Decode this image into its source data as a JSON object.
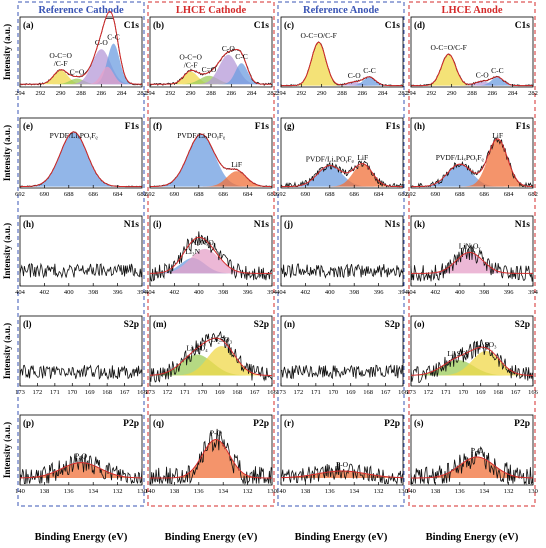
{
  "columns": [
    {
      "label": "Reference Cathode",
      "color": "#3a55b5"
    },
    {
      "label": "LHCE Cathode",
      "color": "#d42b2b"
    },
    {
      "label": "Reference Anode",
      "color": "#3a55b5"
    },
    {
      "label": "LHCE Anode",
      "color": "#d42b2b"
    }
  ],
  "y_axis_label": "Intensity (a.u.)",
  "x_axis_label": "Binding Energy (eV)",
  "colors": {
    "fit_line": "#d42b2b",
    "raw_line": "#111111",
    "blue_peak": "#6e9ee0",
    "green_peak": "#9ccc5a",
    "orange_peak": "#f0703a",
    "pink_peak": "#e6a0c8",
    "yellow_peak": "#f0d84a",
    "purple_peak": "#b59ad8"
  },
  "chart_data": [
    {
      "type": "line",
      "panel": "(a)",
      "element": "C1s",
      "x_range": [
        294,
        282
      ],
      "ticks": [
        294,
        292,
        290,
        288,
        286,
        284,
        282
      ],
      "noise": 0.003,
      "baseline": 0.04,
      "peaks": [
        {
          "label": "O-C=O\n/C-F",
          "center": 290.0,
          "height": 0.2,
          "width": 0.7,
          "color": "#f0d84a"
        },
        {
          "label": "C=O",
          "center": 288.4,
          "height": 0.08,
          "width": 0.7,
          "color": "#9ccc5a"
        },
        {
          "label": "C-O",
          "center": 286.0,
          "height": 0.5,
          "width": 0.9,
          "color": "#b59ad8"
        },
        {
          "label": "C-C",
          "center": 284.8,
          "height": 0.58,
          "width": 0.6,
          "color": "#6e9ee0"
        },
        {
          "label": "",
          "center": 285.4,
          "height": 0.25,
          "width": 0.6,
          "color": "#e6a0c8"
        }
      ]
    },
    {
      "type": "line",
      "panel": "(b)",
      "element": "C1s",
      "x_range": [
        294,
        282
      ],
      "ticks": [
        294,
        292,
        290,
        288,
        286,
        284,
        282
      ],
      "noise": 0.004,
      "baseline": 0.04,
      "peaks": [
        {
          "label": "O-C=O\n/C-F",
          "center": 290.0,
          "height": 0.18,
          "width": 0.7,
          "color": "#f0d84a"
        },
        {
          "label": "C=O",
          "center": 288.2,
          "height": 0.12,
          "width": 0.9,
          "color": "#9ccc5a"
        },
        {
          "label": "C-O",
          "center": 286.3,
          "height": 0.42,
          "width": 0.9,
          "color": "#b59ad8"
        },
        {
          "label": "C-C",
          "center": 285.0,
          "height": 0.3,
          "width": 0.6,
          "color": "#6e9ee0"
        }
      ]
    },
    {
      "type": "line",
      "panel": "(c)",
      "element": "C1s",
      "x_range": [
        294,
        282
      ],
      "ticks": [
        294,
        292,
        290,
        288,
        286,
        284,
        282
      ],
      "noise": 0.003,
      "baseline": 0.02,
      "peaks": [
        {
          "label": "O-C=O/C-F",
          "center": 290.3,
          "height": 0.62,
          "width": 0.7,
          "color": "#f0d84a"
        },
        {
          "label": "C-O",
          "center": 286.8,
          "height": 0.05,
          "width": 0.7,
          "color": "#b59ad8"
        },
        {
          "label": "C-C",
          "center": 285.3,
          "height": 0.12,
          "width": 0.6,
          "color": "#6e9ee0"
        }
      ]
    },
    {
      "type": "line",
      "panel": "(d)",
      "element": "C1s",
      "x_range": [
        294,
        282
      ],
      "ticks": [
        294,
        292,
        290,
        288,
        286,
        284,
        282
      ],
      "noise": 0.003,
      "baseline": 0.02,
      "peaks": [
        {
          "label": "O-C=O/C-F",
          "center": 290.3,
          "height": 0.45,
          "width": 0.7,
          "color": "#f0d84a"
        },
        {
          "label": "C-O",
          "center": 287.0,
          "height": 0.06,
          "width": 0.7,
          "color": "#b59ad8"
        },
        {
          "label": "C-C",
          "center": 285.5,
          "height": 0.12,
          "width": 0.6,
          "color": "#6e9ee0"
        }
      ]
    },
    {
      "type": "line",
      "panel": "(e)",
      "element": "F1s",
      "x_range": [
        692,
        682
      ],
      "ticks": [
        692,
        690,
        688,
        686,
        684,
        682
      ],
      "noise": 0.002,
      "baseline": 0.02,
      "peaks": [
        {
          "label": "PVDF/LiₓPOᵧFᵨ",
          "center": 687.6,
          "height": 0.78,
          "width": 1.1,
          "color": "#6e9ee0"
        }
      ]
    },
    {
      "type": "line",
      "panel": "(f)",
      "element": "F1s",
      "x_range": [
        692,
        682
      ],
      "ticks": [
        692,
        690,
        688,
        686,
        684,
        682
      ],
      "noise": 0.002,
      "baseline": 0.02,
      "peaks": [
        {
          "label": "PVDF/LiₓPOᵧFᵨ",
          "center": 687.8,
          "height": 0.75,
          "width": 1.1,
          "color": "#6e9ee0"
        },
        {
          "label": "LiF",
          "center": 684.9,
          "height": 0.22,
          "width": 0.8,
          "color": "#f0703a"
        }
      ]
    },
    {
      "type": "line",
      "panel": "(g)",
      "element": "F1s",
      "x_range": [
        692,
        682
      ],
      "ticks": [
        692,
        690,
        688,
        686,
        684,
        682
      ],
      "noise": 0.012,
      "baseline": 0.02,
      "peaks": [
        {
          "label": "PVDF/LiₓPOᵧFᵨ",
          "center": 688.0,
          "height": 0.3,
          "width": 1.0,
          "color": "#6e9ee0"
        },
        {
          "label": "LiF",
          "center": 685.3,
          "height": 0.32,
          "width": 0.8,
          "color": "#f0703a"
        }
      ]
    },
    {
      "type": "line",
      "panel": "(h)",
      "element": "F1s",
      "x_range": [
        692,
        682
      ],
      "ticks": [
        692,
        690,
        688,
        686,
        684,
        682
      ],
      "noise": 0.012,
      "baseline": 0.02,
      "peaks": [
        {
          "label": "PVDF/LiₓPOᵧFᵨ",
          "center": 688.0,
          "height": 0.32,
          "width": 1.0,
          "color": "#6e9ee0"
        },
        {
          "label": "LiF",
          "center": 684.9,
          "height": 0.68,
          "width": 0.8,
          "color": "#f0703a"
        }
      ]
    },
    {
      "type": "line",
      "panel": "(h)",
      "element": "N1s",
      "x_range": [
        404,
        394
      ],
      "ticks": [
        404,
        402,
        400,
        398,
        396,
        394
      ],
      "noise": 0.025,
      "baseline": 0.22,
      "peaks": []
    },
    {
      "type": "line",
      "panel": "(i)",
      "element": "N1s",
      "x_range": [
        404,
        394
      ],
      "ticks": [
        404,
        402,
        400,
        398,
        396,
        394
      ],
      "noise": 0.03,
      "baseline": 0.18,
      "peaks": [
        {
          "label": "Li₃N",
          "center": 400.5,
          "height": 0.22,
          "width": 1.0,
          "color": "#6e9ee0"
        },
        {
          "label": "LiNₓOᵧ",
          "center": 399.5,
          "height": 0.35,
          "width": 1.2,
          "color": "#e6a0c8"
        }
      ]
    },
    {
      "type": "line",
      "panel": "(j)",
      "element": "N1s",
      "x_range": [
        404,
        394
      ],
      "ticks": [
        404,
        402,
        400,
        398,
        396,
        394
      ],
      "noise": 0.025,
      "baseline": 0.22,
      "peaks": []
    },
    {
      "type": "line",
      "panel": "(k)",
      "element": "N1s",
      "x_range": [
        404,
        394
      ],
      "ticks": [
        404,
        402,
        400,
        398,
        396,
        394
      ],
      "noise": 0.03,
      "baseline": 0.18,
      "peaks": [
        {
          "label": "LiNₓOᵧ",
          "center": 399.2,
          "height": 0.3,
          "width": 1.1,
          "color": "#e6a0c8"
        }
      ]
    },
    {
      "type": "line",
      "panel": "(l)",
      "element": "S2p",
      "x_range": [
        173,
        166
      ],
      "ticks": [
        173,
        172,
        171,
        170,
        169,
        168,
        167,
        166
      ],
      "noise": 0.025,
      "baseline": 0.2,
      "peaks": []
    },
    {
      "type": "line",
      "panel": "(m)",
      "element": "S2p",
      "x_range": [
        173,
        166
      ],
      "ticks": [
        173,
        172,
        171,
        170,
        169,
        168,
        167,
        166
      ],
      "noise": 0.03,
      "baseline": 0.15,
      "peaks": [
        {
          "label": "Li₂SO₄",
          "center": 170.3,
          "height": 0.3,
          "width": 0.9,
          "color": "#9ccc5a"
        },
        {
          "label": "Li₂SO₃",
          "center": 168.9,
          "height": 0.42,
          "width": 0.8,
          "color": "#f0d84a"
        }
      ]
    },
    {
      "type": "line",
      "panel": "(n)",
      "element": "S2p",
      "x_range": [
        173,
        166
      ],
      "ticks": [
        173,
        172,
        171,
        170,
        169,
        168,
        167,
        166
      ],
      "noise": 0.025,
      "baseline": 0.2,
      "peaks": []
    },
    {
      "type": "line",
      "panel": "(o)",
      "element": "S2p",
      "x_range": [
        173,
        166
      ],
      "ticks": [
        173,
        172,
        171,
        170,
        169,
        168,
        167,
        166
      ],
      "noise": 0.03,
      "baseline": 0.15,
      "peaks": [
        {
          "label": "Li₂SO₄",
          "center": 170.3,
          "height": 0.22,
          "width": 0.9,
          "color": "#9ccc5a"
        },
        {
          "label": "Li₂SO₃",
          "center": 168.7,
          "height": 0.35,
          "width": 0.8,
          "color": "#f0d84a"
        }
      ]
    },
    {
      "type": "line",
      "panel": "(p)",
      "element": "P2p",
      "x_range": [
        140,
        130
      ],
      "ticks": [
        140,
        138,
        136,
        134,
        132,
        130
      ],
      "noise": 0.035,
      "baseline": 0.1,
      "peaks": [
        {
          "label": "P-O",
          "center": 135.0,
          "height": 0.22,
          "width": 1.6,
          "color": "#f0703a"
        }
      ]
    },
    {
      "type": "line",
      "panel": "(q)",
      "element": "P2p",
      "x_range": [
        140,
        130
      ],
      "ticks": [
        140,
        138,
        136,
        134,
        132,
        130
      ],
      "noise": 0.04,
      "baseline": 0.1,
      "peaks": [
        {
          "label": "P-O",
          "center": 134.6,
          "height": 0.55,
          "width": 1.1,
          "color": "#f0703a"
        }
      ]
    },
    {
      "type": "line",
      "panel": "(r)",
      "element": "P2p",
      "x_range": [
        140,
        130
      ],
      "ticks": [
        140,
        138,
        136,
        134,
        132,
        130
      ],
      "noise": 0.03,
      "baseline": 0.1,
      "peaks": [
        {
          "label": "P-O",
          "center": 135.0,
          "height": 0.1,
          "width": 2.0,
          "color": "#f0703a"
        }
      ]
    },
    {
      "type": "line",
      "panel": "(s)",
      "element": "P2p",
      "x_range": [
        140,
        130
      ],
      "ticks": [
        140,
        138,
        136,
        134,
        132,
        130
      ],
      "noise": 0.04,
      "baseline": 0.1,
      "peaks": [
        {
          "label": "P-O",
          "center": 134.6,
          "height": 0.3,
          "width": 1.4,
          "color": "#f0703a"
        }
      ]
    }
  ]
}
